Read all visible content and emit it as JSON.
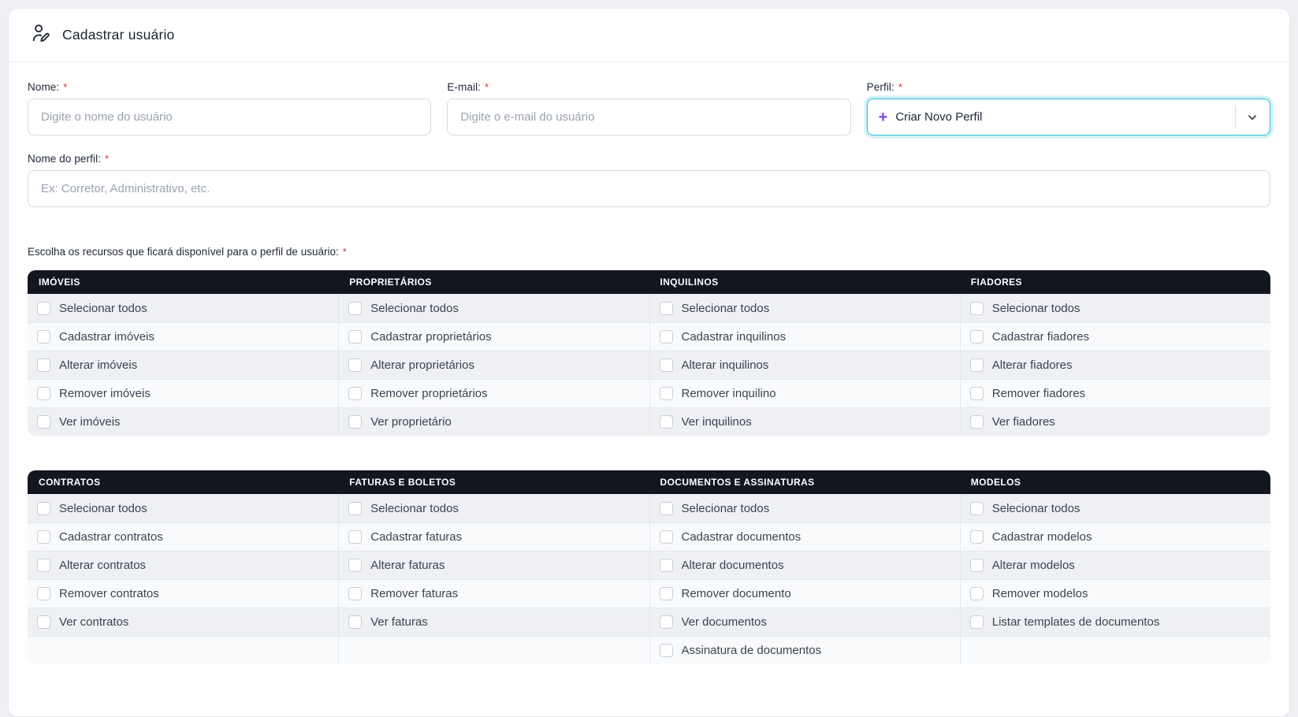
{
  "header": {
    "title": "Cadastrar usuário",
    "icon": "user-pen-icon"
  },
  "required_marker": "*",
  "form": {
    "name_field": {
      "label": "Nome:",
      "value": "",
      "placeholder": "Digite o nome do usuário"
    },
    "email_field": {
      "label": "E-mail:",
      "value": "",
      "placeholder": "Digite o e-mail do usuário"
    },
    "profile_field": {
      "label": "Perfil:",
      "selected_value": "Criar Novo Perfil",
      "plus_icon": "+"
    },
    "profile_name_field": {
      "label": "Nome do perfil:",
      "value": "",
      "placeholder": "Ex: Corretor, Administrativo, etc."
    },
    "resources_label": "Escolha os recursos que ficará disponível para o perfil de usuário:"
  },
  "resource_tables": [
    {
      "columns": [
        {
          "header": "IMÓVEIS",
          "options": [
            "Selecionar todos",
            "Cadastrar imóveis",
            "Alterar imóveis",
            "Remover imóveis",
            "Ver imóveis"
          ]
        },
        {
          "header": "PROPRIETÁRIOS",
          "options": [
            "Selecionar todos",
            "Cadastrar proprietários",
            "Alterar proprietários",
            "Remover proprietários",
            "Ver proprietário"
          ]
        },
        {
          "header": "INQUILINOS",
          "options": [
            "Selecionar todos",
            "Cadastrar inquilinos",
            "Alterar inquilinos",
            "Remover inquilino",
            "Ver inquilinos"
          ]
        },
        {
          "header": "FIADORES",
          "options": [
            "Selecionar todos",
            "Cadastrar fiadores",
            "Alterar fiadores",
            "Remover fiadores",
            "Ver fiadores"
          ]
        }
      ]
    },
    {
      "columns": [
        {
          "header": "CONTRATOS",
          "options": [
            "Selecionar todos",
            "Cadastrar contratos",
            "Alterar contratos",
            "Remover contratos",
            "Ver contratos"
          ]
        },
        {
          "header": "FATURAS E BOLETOS",
          "options": [
            "Selecionar todos",
            "Cadastrar faturas",
            "Alterar faturas",
            "Remover faturas",
            "Ver faturas"
          ]
        },
        {
          "header": "DOCUMENTOS E ASSINATURAS",
          "options": [
            "Selecionar todos",
            "Cadastrar documentos",
            "Alterar documentos",
            "Remover documento",
            "Ver documentos",
            "Assinatura de documentos"
          ]
        },
        {
          "header": "MODELOS",
          "options": [
            "Selecionar todos",
            "Cadastrar modelos",
            "Alterar modelos",
            "Remover modelos",
            "Listar templates de documentos"
          ]
        }
      ]
    }
  ],
  "checkboxes_checked": false,
  "colors": {
    "accent_select_border": "#2bc0d4",
    "plus_icon": "#7048e8",
    "table_header_bg": "#11161f",
    "required_asterisk": "#e03131",
    "row_stripe_odd": "#eef0f4",
    "row_stripe_even": "#f9fafc"
  }
}
